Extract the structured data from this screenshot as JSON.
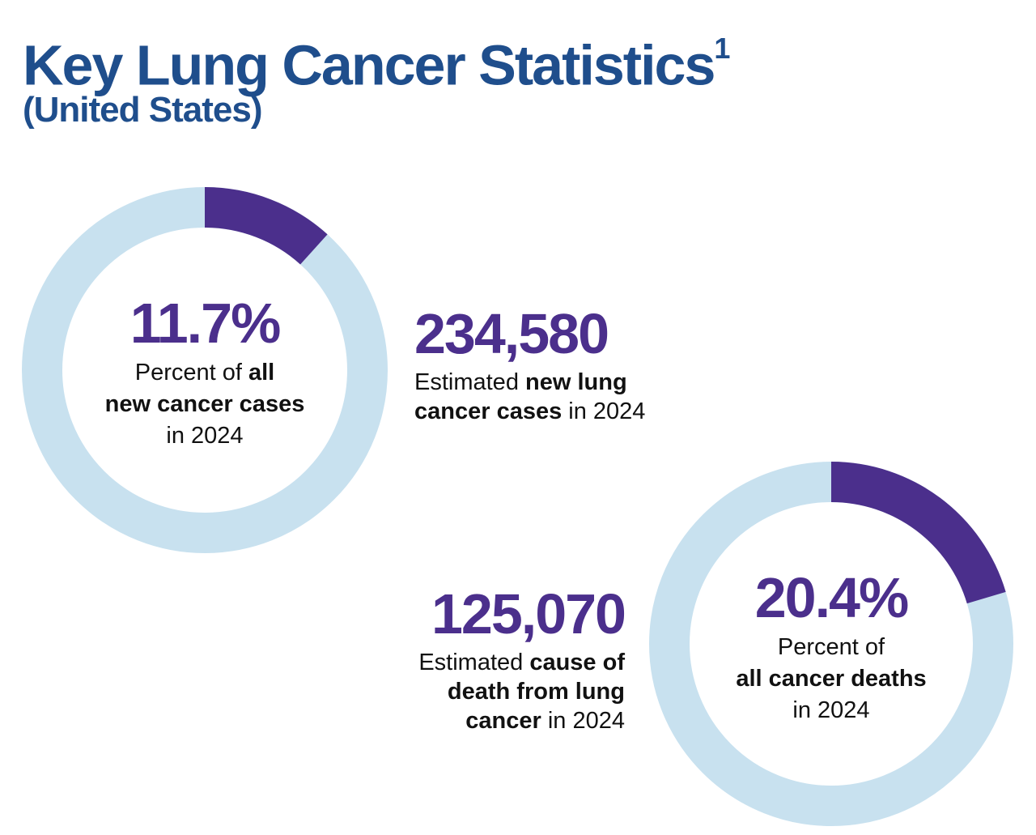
{
  "title": "Key Lung Cancer Statistics",
  "title_footnote": "1",
  "subtitle": "(United States)",
  "colors": {
    "title": "#1f4e8c",
    "accent": "#4b2f8c",
    "ring_track": "#c8e1ef",
    "text": "#111111"
  },
  "chart_data": [
    {
      "type": "pie",
      "variant": "donut",
      "value_percent": 11.7,
      "center_value": "11.7%",
      "label_parts": [
        "Percent of ",
        "all",
        "new cancer cases",
        "in 2024"
      ]
    },
    {
      "type": "pie",
      "variant": "donut",
      "value_percent": 20.4,
      "center_value": "20.4%",
      "label_parts": [
        "Percent of",
        "all cancer deaths",
        "in 2024"
      ]
    }
  ],
  "stats": {
    "new_cases": {
      "value": "234,580",
      "label_parts": [
        "Estimated ",
        "new lung",
        "cancer cases",
        " in 2024"
      ]
    },
    "deaths": {
      "value": "125,070",
      "label_parts": [
        "Estimated ",
        "cause of",
        "death from lung",
        "cancer",
        " in 2024"
      ]
    }
  }
}
